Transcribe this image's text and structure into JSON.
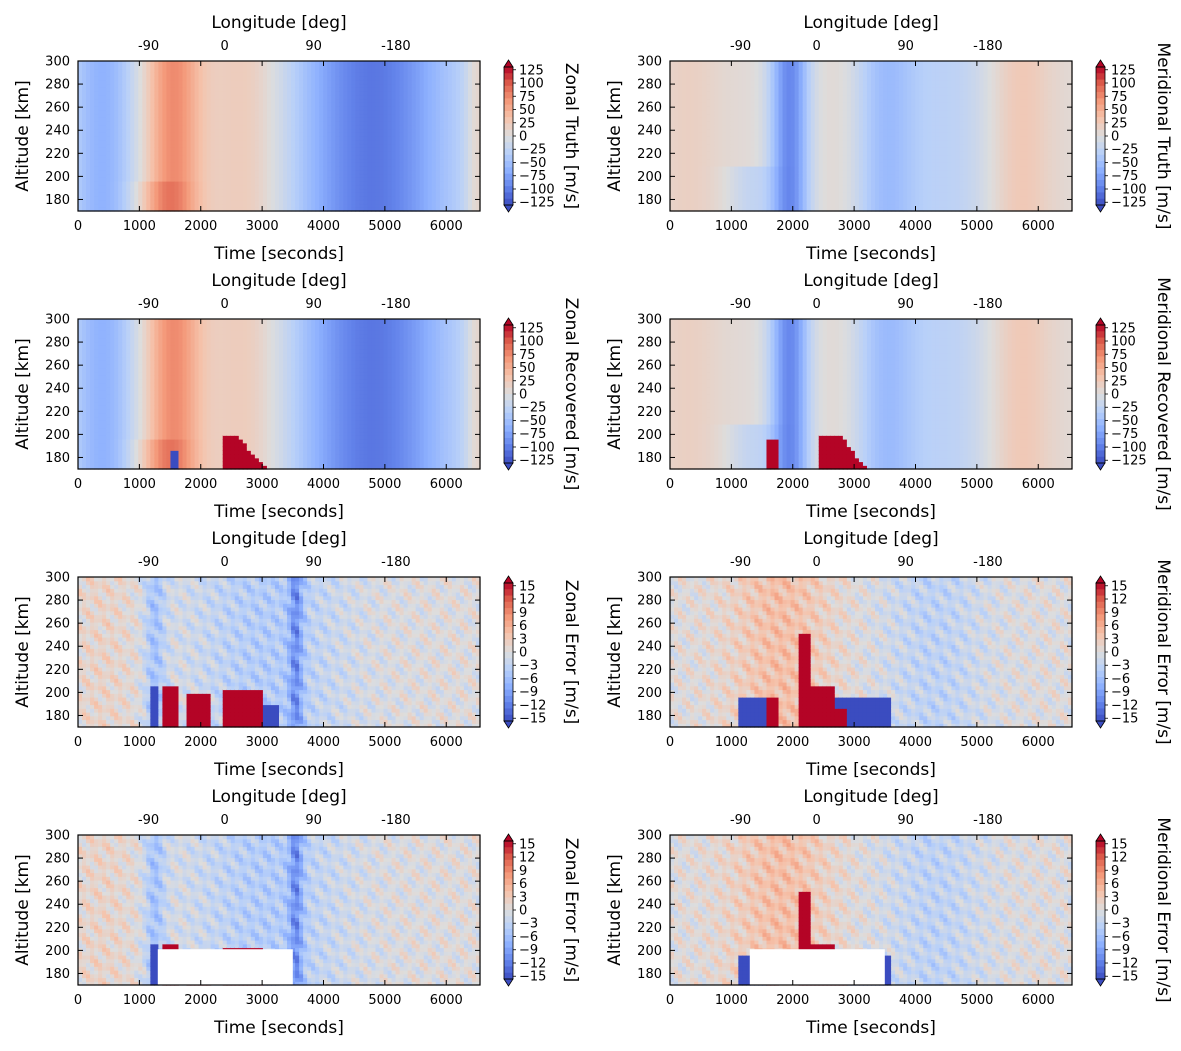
{
  "chart_data": [
    {
      "id": "p1",
      "type": "heatmap",
      "field": "zonal_truth",
      "xlabel": "Time [seconds]",
      "ylabel": "Altitude [km]",
      "top_xlabel": "Longitude [deg]",
      "cbar_label": "Zonal Truth [m/s]",
      "xlim": [
        0,
        6550
      ],
      "ylim": [
        170,
        300
      ],
      "xticks": [
        0,
        1000,
        2000,
        3000,
        4000,
        5000,
        6000
      ],
      "yticks": [
        180,
        200,
        220,
        240,
        260,
        280,
        300
      ],
      "top_ticks": [
        {
          "time": 1150,
          "label": "-90"
        },
        {
          "time": 2390,
          "label": "0"
        },
        {
          "time": 3840,
          "label": "90"
        },
        {
          "time": 5180,
          "label": "-180"
        }
      ],
      "cbar_ticks": [
        "125",
        "100",
        "75",
        "50",
        "25",
        "0",
        "−25",
        "−50",
        "−75",
        "−100",
        "−125"
      ],
      "clim": 125
    },
    {
      "id": "p2",
      "type": "heatmap",
      "field": "meridional_truth",
      "xlabel": "Time [seconds]",
      "ylabel": "Altitude [km]",
      "top_xlabel": "Longitude [deg]",
      "cbar_label": "Meridional Truth [m/s]",
      "xlim": [
        0,
        6550
      ],
      "ylim": [
        170,
        300
      ],
      "xticks": [
        0,
        1000,
        2000,
        3000,
        4000,
        5000,
        6000
      ],
      "yticks": [
        180,
        200,
        220,
        240,
        260,
        280,
        300
      ],
      "top_ticks": [
        {
          "time": 1150,
          "label": "-90"
        },
        {
          "time": 2390,
          "label": "0"
        },
        {
          "time": 3840,
          "label": "90"
        },
        {
          "time": 5180,
          "label": "-180"
        }
      ],
      "cbar_ticks": [
        "125",
        "100",
        "75",
        "50",
        "25",
        "0",
        "−25",
        "−50",
        "−75",
        "−100",
        "−125"
      ],
      "clim": 125
    },
    {
      "id": "p3",
      "type": "heatmap",
      "field": "zonal_recovered",
      "xlabel": "Time [seconds]",
      "ylabel": "Altitude [km]",
      "top_xlabel": "Longitude [deg]",
      "cbar_label": "Zonal Recovered [m/s]",
      "xlim": [
        0,
        6550
      ],
      "ylim": [
        170,
        300
      ],
      "xticks": [
        0,
        1000,
        2000,
        3000,
        4000,
        5000,
        6000
      ],
      "yticks": [
        180,
        200,
        220,
        240,
        260,
        280,
        300
      ],
      "top_ticks": [
        {
          "time": 1150,
          "label": "-90"
        },
        {
          "time": 2390,
          "label": "0"
        },
        {
          "time": 3840,
          "label": "90"
        },
        {
          "time": 5180,
          "label": "-180"
        }
      ],
      "cbar_ticks": [
        "125",
        "100",
        "75",
        "50",
        "25",
        "0",
        "−25",
        "−50",
        "−75",
        "−100",
        "−125"
      ],
      "clim": 125
    },
    {
      "id": "p4",
      "type": "heatmap",
      "field": "meridional_recovered",
      "xlabel": "Time [seconds]",
      "ylabel": "Altitude [km]",
      "top_xlabel": "Longitude [deg]",
      "cbar_label": "Meridional Recovered [m/s]",
      "xlim": [
        0,
        6550
      ],
      "ylim": [
        170,
        300
      ],
      "xticks": [
        0,
        1000,
        2000,
        3000,
        4000,
        5000,
        6000
      ],
      "yticks": [
        180,
        200,
        220,
        240,
        260,
        280,
        300
      ],
      "top_ticks": [
        {
          "time": 1150,
          "label": "-90"
        },
        {
          "time": 2390,
          "label": "0"
        },
        {
          "time": 3840,
          "label": "90"
        },
        {
          "time": 5180,
          "label": "-180"
        }
      ],
      "cbar_ticks": [
        "125",
        "100",
        "75",
        "50",
        "25",
        "0",
        "−25",
        "−50",
        "−75",
        "−100",
        "−125"
      ],
      "clim": 125
    },
    {
      "id": "p5",
      "type": "heatmap",
      "field": "zonal_error",
      "xlabel": "Time [seconds]",
      "ylabel": "Altitude [km]",
      "top_xlabel": "Longitude [deg]",
      "cbar_label": "Zonal Error [m/s]",
      "xlim": [
        0,
        6550
      ],
      "ylim": [
        170,
        300
      ],
      "xticks": [
        0,
        1000,
        2000,
        3000,
        4000,
        5000,
        6000
      ],
      "yticks": [
        180,
        200,
        220,
        240,
        260,
        280,
        300
      ],
      "top_ticks": [
        {
          "time": 1150,
          "label": "-90"
        },
        {
          "time": 2390,
          "label": "0"
        },
        {
          "time": 3840,
          "label": "90"
        },
        {
          "time": 5180,
          "label": "-180"
        }
      ],
      "cbar_ticks": [
        "15",
        "12",
        "9",
        "6",
        "3",
        "0",
        "−3",
        "−6",
        "−9",
        "−12",
        "−15"
      ],
      "clim": 15
    },
    {
      "id": "p6",
      "type": "heatmap",
      "field": "meridional_error",
      "xlabel": "Time [seconds]",
      "ylabel": "Altitude [km]",
      "top_xlabel": "Longitude [deg]",
      "cbar_label": "Meridional Error [m/s]",
      "xlim": [
        0,
        6550
      ],
      "ylim": [
        170,
        300
      ],
      "xticks": [
        0,
        1000,
        2000,
        3000,
        4000,
        5000,
        6000
      ],
      "yticks": [
        180,
        200,
        220,
        240,
        260,
        280,
        300
      ],
      "top_ticks": [
        {
          "time": 1150,
          "label": "-90"
        },
        {
          "time": 2390,
          "label": "0"
        },
        {
          "time": 3840,
          "label": "90"
        },
        {
          "time": 5180,
          "label": "-180"
        }
      ],
      "cbar_ticks": [
        "15",
        "12",
        "9",
        "6",
        "3",
        "0",
        "−3",
        "−6",
        "−9",
        "−12",
        "−15"
      ],
      "clim": 15
    },
    {
      "id": "p7",
      "type": "heatmap",
      "field": "zonal_error_masked",
      "xlabel": "Time [seconds]",
      "ylabel": "Altitude [km]",
      "top_xlabel": "Longitude [deg]",
      "cbar_label": "Zonal Error [m/s]",
      "xlim": [
        0,
        6550
      ],
      "ylim": [
        170,
        300
      ],
      "xticks": [
        0,
        1000,
        2000,
        3000,
        4000,
        5000,
        6000
      ],
      "yticks": [
        180,
        200,
        220,
        240,
        260,
        280,
        300
      ],
      "top_ticks": [
        {
          "time": 1150,
          "label": "-90"
        },
        {
          "time": 2390,
          "label": "0"
        },
        {
          "time": 3840,
          "label": "90"
        },
        {
          "time": 5180,
          "label": "-180"
        }
      ],
      "cbar_ticks": [
        "15",
        "12",
        "9",
        "6",
        "3",
        "0",
        "−3",
        "−6",
        "−9",
        "−12",
        "−15"
      ],
      "clim": 15,
      "mask": {
        "t0": 1300,
        "t1": 3500,
        "alt_max": 201
      }
    },
    {
      "id": "p8",
      "type": "heatmap",
      "field": "meridional_error_masked",
      "xlabel": "Time [seconds]",
      "ylabel": "Altitude [km]",
      "top_xlabel": "Longitude [deg]",
      "cbar_label": "Meridional Error [m/s]",
      "xlim": [
        0,
        6550
      ],
      "ylim": [
        170,
        300
      ],
      "xticks": [
        0,
        1000,
        2000,
        3000,
        4000,
        5000,
        6000
      ],
      "yticks": [
        180,
        200,
        220,
        240,
        260,
        280,
        300
      ],
      "top_ticks": [
        {
          "time": 1150,
          "label": "-90"
        },
        {
          "time": 2390,
          "label": "0"
        },
        {
          "time": 3840,
          "label": "90"
        },
        {
          "time": 5180,
          "label": "-180"
        }
      ],
      "cbar_ticks": [
        "15",
        "12",
        "9",
        "6",
        "3",
        "0",
        "−3",
        "−6",
        "−9",
        "−12",
        "−15"
      ],
      "clim": 15,
      "mask": {
        "t0": 1300,
        "t1": 3500,
        "alt_max": 201
      }
    }
  ],
  "colors": {
    "colormap": "coolwarm",
    "low": "#3b4cc0",
    "mid": "#dddddd",
    "high": "#b40426"
  }
}
